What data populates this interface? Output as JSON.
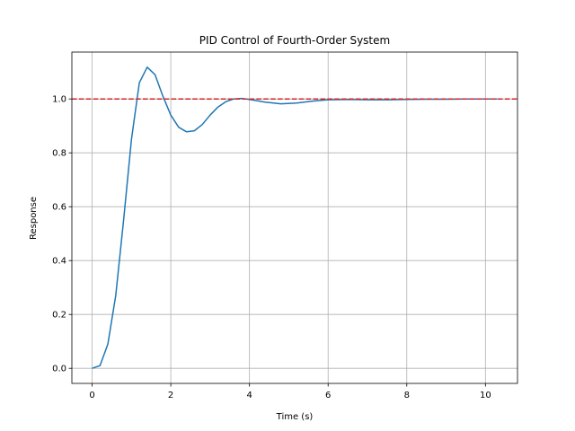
{
  "chart_data": {
    "type": "line",
    "title": "PID Control of Fourth-Order System",
    "xlabel": "Time (s)",
    "ylabel": "Response",
    "x": [
      0,
      0.2,
      0.4,
      0.6,
      0.8,
      1.0,
      1.2,
      1.4,
      1.6,
      1.8,
      2.0,
      2.2,
      2.4,
      2.6,
      2.8,
      3.0,
      3.2,
      3.4,
      3.6,
      3.8,
      4.0,
      4.4,
      4.8,
      5.2,
      5.6,
      6.0,
      6.5,
      7.0,
      7.5,
      8.0,
      8.5,
      9.0,
      9.5,
      10.0,
      10.3
    ],
    "values": [
      0,
      0.01,
      0.09,
      0.27,
      0.55,
      0.85,
      1.06,
      1.118,
      1.09,
      1.01,
      0.94,
      0.895,
      0.878,
      0.882,
      0.905,
      0.94,
      0.97,
      0.99,
      1.0,
      1.002,
      0.998,
      0.988,
      0.982,
      0.985,
      0.992,
      0.997,
      0.998,
      0.997,
      0.997,
      0.998,
      0.999,
      0.999,
      1.0,
      1.0,
      1.0
    ],
    "color": "#1f77b4",
    "reference_line": {
      "value": 1.0,
      "color": "#d62728"
    },
    "xlim": [
      -0.515,
      10.815
    ],
    "xticks": [
      0,
      2,
      4,
      6,
      8,
      10
    ],
    "ylim": [
      -0.056,
      1.174
    ],
    "yticks": [
      {
        "value": 0,
        "label": "0.0"
      },
      {
        "value": 0.2,
        "label": "0.2"
      },
      {
        "value": 0.4,
        "label": "0.4"
      },
      {
        "value": 0.6,
        "label": "0.6"
      },
      {
        "value": 0.8,
        "label": "0.8"
      },
      {
        "value": 1.0,
        "label": "1.0"
      }
    ],
    "grid": true
  }
}
